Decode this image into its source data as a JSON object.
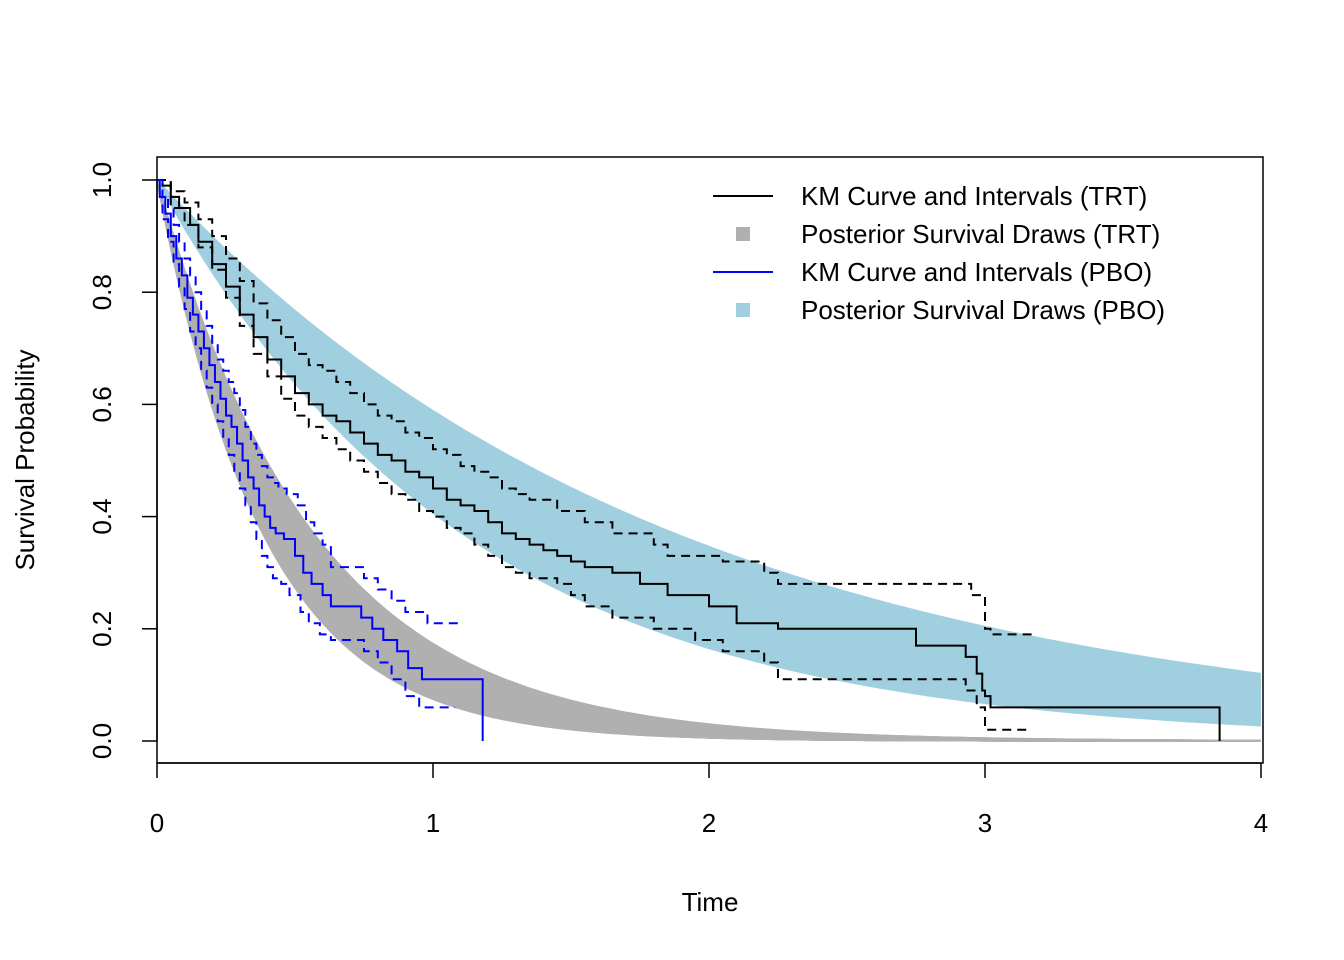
{
  "chart_data": {
    "type": "line",
    "title": "",
    "xlabel": "Time",
    "ylabel": "Survival Probability",
    "xlim": [
      0,
      4
    ],
    "ylim": [
      0,
      1
    ],
    "x_ticks": [
      "0",
      "1",
      "2",
      "3",
      "4"
    ],
    "y_ticks": [
      "0.0",
      "0.2",
      "0.4",
      "0.6",
      "0.8",
      "1.0"
    ],
    "grid": false,
    "legend_position": "top-right",
    "legend": [
      {
        "label": "KM Curve and Intervals (TRT)",
        "symbol": "line",
        "color": "#000000"
      },
      {
        "label": "Posterior Survival Draws (TRT)",
        "symbol": "square",
        "color": "#B0B0B0"
      },
      {
        "label": "KM Curve and Intervals (PBO)",
        "symbol": "line",
        "color": "#0000FF"
      },
      {
        "label": "Posterior Survival Draws (PBO)",
        "symbol": "square",
        "color": "#A0CFE0"
      }
    ],
    "posterior_draws": [
      {
        "legend_label": "Posterior Survival Draws (TRT)",
        "color": "#B0B0B0",
        "count": 100,
        "rate_range": [
          1.75,
          2.6
        ]
      },
      {
        "legend_label": "Posterior Survival Draws (PBO)",
        "color": "#A0CFE0",
        "count": 100,
        "rate_range": [
          0.53,
          0.9
        ]
      }
    ],
    "km_curves": [
      {
        "legend_label": "KM Curve and Intervals (TRT)",
        "color": "#000000",
        "estimate": [
          [
            0,
            1
          ],
          [
            0.02,
            0.99
          ],
          [
            0.05,
            0.97
          ],
          [
            0.08,
            0.95
          ],
          [
            0.12,
            0.92
          ],
          [
            0.15,
            0.89
          ],
          [
            0.2,
            0.85
          ],
          [
            0.25,
            0.81
          ],
          [
            0.3,
            0.76
          ],
          [
            0.35,
            0.72
          ],
          [
            0.4,
            0.68
          ],
          [
            0.45,
            0.65
          ],
          [
            0.5,
            0.62
          ],
          [
            0.55,
            0.6
          ],
          [
            0.6,
            0.58
          ],
          [
            0.65,
            0.57
          ],
          [
            0.7,
            0.55
          ],
          [
            0.75,
            0.53
          ],
          [
            0.8,
            0.51
          ],
          [
            0.85,
            0.5
          ],
          [
            0.9,
            0.48
          ],
          [
            0.95,
            0.47
          ],
          [
            1.0,
            0.45
          ],
          [
            1.05,
            0.43
          ],
          [
            1.1,
            0.42
          ],
          [
            1.15,
            0.41
          ],
          [
            1.2,
            0.39
          ],
          [
            1.25,
            0.37
          ],
          [
            1.3,
            0.36
          ],
          [
            1.35,
            0.35
          ],
          [
            1.4,
            0.34
          ],
          [
            1.45,
            0.33
          ],
          [
            1.5,
            0.32
          ],
          [
            1.55,
            0.31
          ],
          [
            1.65,
            0.3
          ],
          [
            1.75,
            0.28
          ],
          [
            1.85,
            0.26
          ],
          [
            2.0,
            0.24
          ],
          [
            2.1,
            0.21
          ],
          [
            2.25,
            0.2
          ],
          [
            2.75,
            0.17
          ],
          [
            2.93,
            0.15
          ],
          [
            2.97,
            0.12
          ],
          [
            2.99,
            0.09
          ],
          [
            3.0,
            0.08
          ],
          [
            3.02,
            0.06
          ],
          [
            3.85,
            0.0
          ]
        ],
        "upper": [
          [
            0,
            1
          ],
          [
            0.05,
            0.98
          ],
          [
            0.1,
            0.96
          ],
          [
            0.15,
            0.93
          ],
          [
            0.2,
            0.9
          ],
          [
            0.25,
            0.86
          ],
          [
            0.3,
            0.82
          ],
          [
            0.35,
            0.78
          ],
          [
            0.4,
            0.75
          ],
          [
            0.45,
            0.72
          ],
          [
            0.5,
            0.69
          ],
          [
            0.55,
            0.67
          ],
          [
            0.6,
            0.66
          ],
          [
            0.65,
            0.64
          ],
          [
            0.7,
            0.62
          ],
          [
            0.75,
            0.6
          ],
          [
            0.8,
            0.58
          ],
          [
            0.85,
            0.57
          ],
          [
            0.9,
            0.55
          ],
          [
            0.95,
            0.54
          ],
          [
            1.0,
            0.52
          ],
          [
            1.05,
            0.51
          ],
          [
            1.1,
            0.49
          ],
          [
            1.15,
            0.48
          ],
          [
            1.2,
            0.47
          ],
          [
            1.25,
            0.45
          ],
          [
            1.3,
            0.44
          ],
          [
            1.35,
            0.43
          ],
          [
            1.45,
            0.41
          ],
          [
            1.55,
            0.39
          ],
          [
            1.65,
            0.37
          ],
          [
            1.8,
            0.35
          ],
          [
            1.85,
            0.33
          ],
          [
            2.05,
            0.32
          ],
          [
            2.2,
            0.3
          ],
          [
            2.25,
            0.28
          ],
          [
            2.95,
            0.26
          ],
          [
            3.0,
            0.2
          ],
          [
            3.02,
            0.19
          ],
          [
            3.17,
            0.19
          ]
        ],
        "lower": [
          [
            0,
            1
          ],
          [
            0.05,
            0.95
          ],
          [
            0.1,
            0.92
          ],
          [
            0.15,
            0.88
          ],
          [
            0.2,
            0.84
          ],
          [
            0.25,
            0.79
          ],
          [
            0.3,
            0.74
          ],
          [
            0.35,
            0.69
          ],
          [
            0.4,
            0.65
          ],
          [
            0.45,
            0.61
          ],
          [
            0.5,
            0.58
          ],
          [
            0.55,
            0.56
          ],
          [
            0.6,
            0.54
          ],
          [
            0.65,
            0.52
          ],
          [
            0.7,
            0.5
          ],
          [
            0.75,
            0.48
          ],
          [
            0.8,
            0.46
          ],
          [
            0.85,
            0.44
          ],
          [
            0.9,
            0.43
          ],
          [
            0.95,
            0.41
          ],
          [
            1.0,
            0.4
          ],
          [
            1.05,
            0.38
          ],
          [
            1.1,
            0.37
          ],
          [
            1.15,
            0.35
          ],
          [
            1.2,
            0.33
          ],
          [
            1.25,
            0.31
          ],
          [
            1.3,
            0.3
          ],
          [
            1.35,
            0.29
          ],
          [
            1.45,
            0.28
          ],
          [
            1.5,
            0.26
          ],
          [
            1.55,
            0.24
          ],
          [
            1.65,
            0.22
          ],
          [
            1.8,
            0.2
          ],
          [
            1.95,
            0.18
          ],
          [
            2.05,
            0.16
          ],
          [
            2.2,
            0.14
          ],
          [
            2.25,
            0.11
          ],
          [
            2.75,
            0.11
          ],
          [
            2.93,
            0.09
          ],
          [
            2.97,
            0.06
          ],
          [
            3.0,
            0.02
          ],
          [
            3.17,
            0.02
          ]
        ]
      },
      {
        "legend_label": "KM Curve and Intervals (PBO)",
        "color": "#0000FF",
        "estimate": [
          [
            0,
            1
          ],
          [
            0.01,
            0.97
          ],
          [
            0.03,
            0.94
          ],
          [
            0.05,
            0.9
          ],
          [
            0.07,
            0.86
          ],
          [
            0.09,
            0.83
          ],
          [
            0.11,
            0.79
          ],
          [
            0.13,
            0.76
          ],
          [
            0.15,
            0.73
          ],
          [
            0.17,
            0.7
          ],
          [
            0.19,
            0.67
          ],
          [
            0.21,
            0.64
          ],
          [
            0.23,
            0.61
          ],
          [
            0.25,
            0.58
          ],
          [
            0.27,
            0.56
          ],
          [
            0.29,
            0.53
          ],
          [
            0.31,
            0.5
          ],
          [
            0.33,
            0.47
          ],
          [
            0.35,
            0.45
          ],
          [
            0.37,
            0.42
          ],
          [
            0.39,
            0.4
          ],
          [
            0.41,
            0.38
          ],
          [
            0.43,
            0.37
          ],
          [
            0.46,
            0.36
          ],
          [
            0.5,
            0.33
          ],
          [
            0.53,
            0.3
          ],
          [
            0.56,
            0.28
          ],
          [
            0.6,
            0.26
          ],
          [
            0.63,
            0.24
          ],
          [
            0.74,
            0.22
          ],
          [
            0.78,
            0.2
          ],
          [
            0.82,
            0.18
          ],
          [
            0.87,
            0.16
          ],
          [
            0.91,
            0.13
          ],
          [
            0.96,
            0.11
          ],
          [
            1.18,
            0.0
          ]
        ],
        "upper": [
          [
            0,
            1
          ],
          [
            0.02,
            0.97
          ],
          [
            0.04,
            0.95
          ],
          [
            0.06,
            0.92
          ],
          [
            0.08,
            0.89
          ],
          [
            0.1,
            0.86
          ],
          [
            0.12,
            0.83
          ],
          [
            0.14,
            0.8
          ],
          [
            0.16,
            0.77
          ],
          [
            0.18,
            0.74
          ],
          [
            0.2,
            0.71
          ],
          [
            0.22,
            0.68
          ],
          [
            0.24,
            0.66
          ],
          [
            0.26,
            0.64
          ],
          [
            0.28,
            0.62
          ],
          [
            0.3,
            0.59
          ],
          [
            0.32,
            0.56
          ],
          [
            0.34,
            0.53
          ],
          [
            0.36,
            0.51
          ],
          [
            0.38,
            0.49
          ],
          [
            0.4,
            0.47
          ],
          [
            0.42,
            0.46
          ],
          [
            0.44,
            0.45
          ],
          [
            0.47,
            0.44
          ],
          [
            0.51,
            0.42
          ],
          [
            0.54,
            0.39
          ],
          [
            0.57,
            0.37
          ],
          [
            0.6,
            0.35
          ],
          [
            0.63,
            0.31
          ],
          [
            0.75,
            0.29
          ],
          [
            0.8,
            0.27
          ],
          [
            0.85,
            0.25
          ],
          [
            0.9,
            0.23
          ],
          [
            0.98,
            0.21
          ],
          [
            1.1,
            0.21
          ]
        ],
        "lower": [
          [
            0,
            1
          ],
          [
            0.02,
            0.93
          ],
          [
            0.04,
            0.89
          ],
          [
            0.06,
            0.85
          ],
          [
            0.08,
            0.81
          ],
          [
            0.1,
            0.77
          ],
          [
            0.12,
            0.73
          ],
          [
            0.14,
            0.7
          ],
          [
            0.16,
            0.66
          ],
          [
            0.18,
            0.63
          ],
          [
            0.2,
            0.6
          ],
          [
            0.22,
            0.57
          ],
          [
            0.24,
            0.54
          ],
          [
            0.26,
            0.51
          ],
          [
            0.28,
            0.48
          ],
          [
            0.3,
            0.45
          ],
          [
            0.32,
            0.42
          ],
          [
            0.34,
            0.39
          ],
          [
            0.36,
            0.36
          ],
          [
            0.38,
            0.33
          ],
          [
            0.4,
            0.31
          ],
          [
            0.42,
            0.29
          ],
          [
            0.45,
            0.28
          ],
          [
            0.48,
            0.26
          ],
          [
            0.52,
            0.23
          ],
          [
            0.55,
            0.21
          ],
          [
            0.59,
            0.19
          ],
          [
            0.63,
            0.18
          ],
          [
            0.75,
            0.16
          ],
          [
            0.8,
            0.14
          ],
          [
            0.85,
            0.11
          ],
          [
            0.9,
            0.08
          ],
          [
            0.95,
            0.06
          ],
          [
            1.08,
            0.06
          ]
        ]
      }
    ]
  }
}
